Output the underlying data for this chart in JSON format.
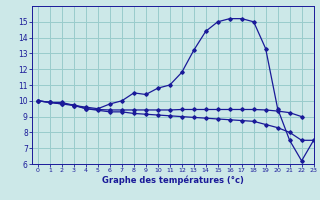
{
  "xlabel": "Graphe des températures (°c)",
  "bg_color": "#cce8e8",
  "grid_color": "#99cccc",
  "line_color": "#1a1a99",
  "ylim": [
    6,
    16
  ],
  "xlim": [
    -0.5,
    23
  ],
  "yticks": [
    6,
    7,
    8,
    9,
    10,
    11,
    12,
    13,
    14,
    15
  ],
  "xticks": [
    0,
    1,
    2,
    3,
    4,
    5,
    6,
    7,
    8,
    9,
    10,
    11,
    12,
    13,
    14,
    15,
    16,
    17,
    18,
    19,
    20,
    21,
    22,
    23
  ],
  "main": [
    10.0,
    9.9,
    9.9,
    9.7,
    9.6,
    9.5,
    9.8,
    10.0,
    10.5,
    10.4,
    10.8,
    11.0,
    11.8,
    13.2,
    14.4,
    15.0,
    15.2,
    15.2,
    15.0,
    13.3,
    9.5,
    7.5,
    6.2,
    7.5
  ],
  "line2": [
    10.0,
    9.9,
    9.8,
    9.7,
    9.5,
    9.4,
    9.3,
    9.3,
    9.2,
    9.15,
    9.1,
    9.05,
    9.0,
    8.95,
    8.9,
    8.85,
    8.8,
    8.75,
    8.7,
    8.5,
    8.3,
    8.0,
    7.5,
    7.5
  ],
  "line3": [
    10.0,
    9.9,
    9.8,
    9.75,
    9.5,
    9.45,
    9.42,
    9.42,
    9.42,
    9.42,
    9.42,
    9.42,
    9.45,
    9.45,
    9.45,
    9.45,
    9.45,
    9.45,
    9.45,
    9.42,
    9.35,
    9.25,
    9.0,
    null
  ]
}
